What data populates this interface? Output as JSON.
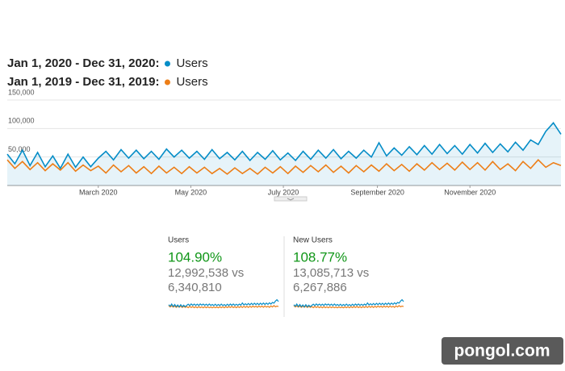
{
  "chart_data": {
    "type": "line",
    "xlim": [
      1,
      366
    ],
    "xticks": [
      {
        "value": 61,
        "label": "March 2020"
      },
      {
        "value": 122,
        "label": "May 2020"
      },
      {
        "value": 183,
        "label": "July 2020"
      },
      {
        "value": 245,
        "label": "September 2020"
      },
      {
        "value": 306,
        "label": "November 2020"
      }
    ],
    "ylim": [
      0,
      150000
    ],
    "yticks": [
      {
        "value": 50000,
        "label": "50,000"
      },
      {
        "value": 100000,
        "label": "100,000"
      },
      {
        "value": 150000,
        "label": "150,000"
      }
    ],
    "grid": true,
    "x": [
      1,
      6,
      11,
      16,
      21,
      26,
      31,
      36,
      41,
      46,
      51,
      56,
      61,
      66,
      71,
      76,
      81,
      86,
      91,
      96,
      101,
      106,
      111,
      116,
      121,
      126,
      131,
      136,
      141,
      146,
      151,
      156,
      161,
      166,
      171,
      176,
      181,
      186,
      191,
      196,
      201,
      206,
      211,
      216,
      221,
      226,
      231,
      236,
      241,
      246,
      251,
      256,
      261,
      266,
      271,
      276,
      281,
      286,
      291,
      296,
      301,
      306,
      311,
      316,
      321,
      326,
      331,
      336,
      341,
      346,
      351,
      356,
      361,
      366
    ],
    "series": [
      {
        "name": "Users",
        "date_range": "Jan 1, 2020 - Dec 31, 2020:",
        "color": "#058dc7",
        "area": true,
        "values": [
          55000,
          38000,
          62000,
          35000,
          58000,
          33000,
          52000,
          30000,
          55000,
          32000,
          50000,
          33000,
          48000,
          60000,
          45000,
          63000,
          48000,
          62000,
          47000,
          60000,
          46000,
          64000,
          50000,
          62000,
          48000,
          60000,
          46000,
          63000,
          47000,
          58000,
          45000,
          60000,
          44000,
          58000,
          46000,
          61000,
          45000,
          57000,
          44000,
          60000,
          46000,
          62000,
          48000,
          63000,
          47000,
          60000,
          48000,
          62000,
          50000,
          75000,
          52000,
          66000,
          53000,
          68000,
          54000,
          70000,
          55000,
          72000,
          56000,
          70000,
          55000,
          72000,
          57000,
          74000,
          58000,
          73000,
          59000,
          76000,
          62000,
          80000,
          72000,
          95000,
          110000,
          90000
        ]
      },
      {
        "name": "Users",
        "date_range": "Jan 1, 2019 - Dec 31, 2019:",
        "color": "#ed7e17",
        "area": false,
        "values": [
          45000,
          30000,
          42000,
          28000,
          40000,
          26000,
          38000,
          27000,
          40000,
          25000,
          36000,
          26000,
          34000,
          22000,
          36000,
          24000,
          35000,
          22000,
          33000,
          21000,
          34000,
          22000,
          32000,
          21000,
          33000,
          22000,
          32000,
          21000,
          30000,
          20000,
          31000,
          21000,
          30000,
          20000,
          32000,
          22000,
          33000,
          21000,
          34000,
          23000,
          35000,
          24000,
          36000,
          23000,
          34000,
          22000,
          35000,
          24000,
          36000,
          25000,
          38000,
          26000,
          37000,
          25000,
          38000,
          27000,
          40000,
          28000,
          39000,
          27000,
          41000,
          28000,
          40000,
          27000,
          42000,
          28000,
          38000,
          26000,
          42000,
          30000,
          45000,
          32000,
          40000,
          35000
        ]
      }
    ]
  },
  "scorecards": [
    {
      "title": "Users",
      "change": "104.90%",
      "comparison": "12,992,538 vs",
      "previous": "6,340,810"
    },
    {
      "title": "New Users",
      "change": "108.77%",
      "comparison": "13,085,713 vs",
      "previous": "6,267,886"
    }
  ],
  "watermark": "pongol.com"
}
